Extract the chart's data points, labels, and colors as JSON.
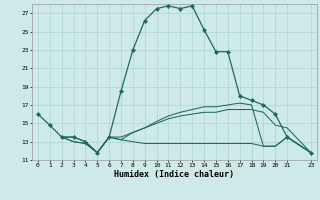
{
  "xlabel": "Humidex (Indice chaleur)",
  "background_color": "#ceeae8",
  "grid_color": "#aed4d0",
  "line_color": "#1a6b5e",
  "xlim": [
    -0.5,
    23.5
  ],
  "ylim": [
    11,
    28
  ],
  "xticks": [
    0,
    1,
    2,
    3,
    4,
    5,
    6,
    7,
    8,
    9,
    10,
    11,
    12,
    13,
    14,
    15,
    16,
    17,
    18,
    19,
    20,
    21,
    23
  ],
  "yticks": [
    11,
    13,
    15,
    17,
    19,
    21,
    23,
    25,
    27
  ],
  "line1_x": [
    0,
    1,
    2,
    3,
    4,
    5,
    6,
    7,
    8,
    9,
    10,
    11,
    12,
    13,
    14,
    15,
    16,
    17,
    18,
    19,
    20,
    21,
    23
  ],
  "line1_y": [
    16.0,
    14.8,
    13.5,
    13.5,
    13.0,
    11.8,
    13.5,
    18.5,
    23.0,
    26.2,
    27.5,
    27.8,
    27.5,
    27.8,
    25.2,
    22.8,
    22.8,
    18.0,
    17.5,
    17.0,
    16.0,
    13.5,
    11.8
  ],
  "line2_x": [
    2,
    3,
    4,
    5,
    6,
    7,
    8,
    9,
    10,
    11,
    12,
    13,
    14,
    15,
    16,
    17,
    18,
    19,
    20,
    21,
    23
  ],
  "line2_y": [
    13.5,
    13.5,
    13.0,
    11.8,
    13.5,
    13.2,
    14.0,
    14.5,
    15.0,
    15.5,
    15.8,
    16.0,
    16.2,
    16.2,
    16.5,
    16.5,
    16.5,
    16.2,
    14.8,
    14.5,
    11.8
  ],
  "line3_x": [
    2,
    3,
    4,
    5,
    6,
    7,
    8,
    9,
    10,
    11,
    12,
    13,
    14,
    15,
    16,
    17,
    18,
    19,
    20,
    21,
    23
  ],
  "line3_y": [
    13.5,
    13.0,
    12.8,
    11.8,
    13.5,
    13.2,
    13.0,
    12.8,
    12.8,
    12.8,
    12.8,
    12.8,
    12.8,
    12.8,
    12.8,
    12.8,
    12.8,
    12.5,
    12.5,
    13.5,
    11.8
  ],
  "line4_x": [
    2,
    3,
    4,
    5,
    6,
    7,
    8,
    9,
    10,
    11,
    12,
    13,
    14,
    15,
    16,
    17,
    18,
    19,
    20,
    21,
    23
  ],
  "line4_y": [
    13.5,
    13.0,
    12.8,
    11.8,
    13.5,
    13.5,
    14.0,
    14.5,
    15.2,
    15.8,
    16.2,
    16.5,
    16.8,
    16.8,
    17.0,
    17.2,
    17.0,
    12.5,
    12.5,
    13.5,
    11.8
  ]
}
